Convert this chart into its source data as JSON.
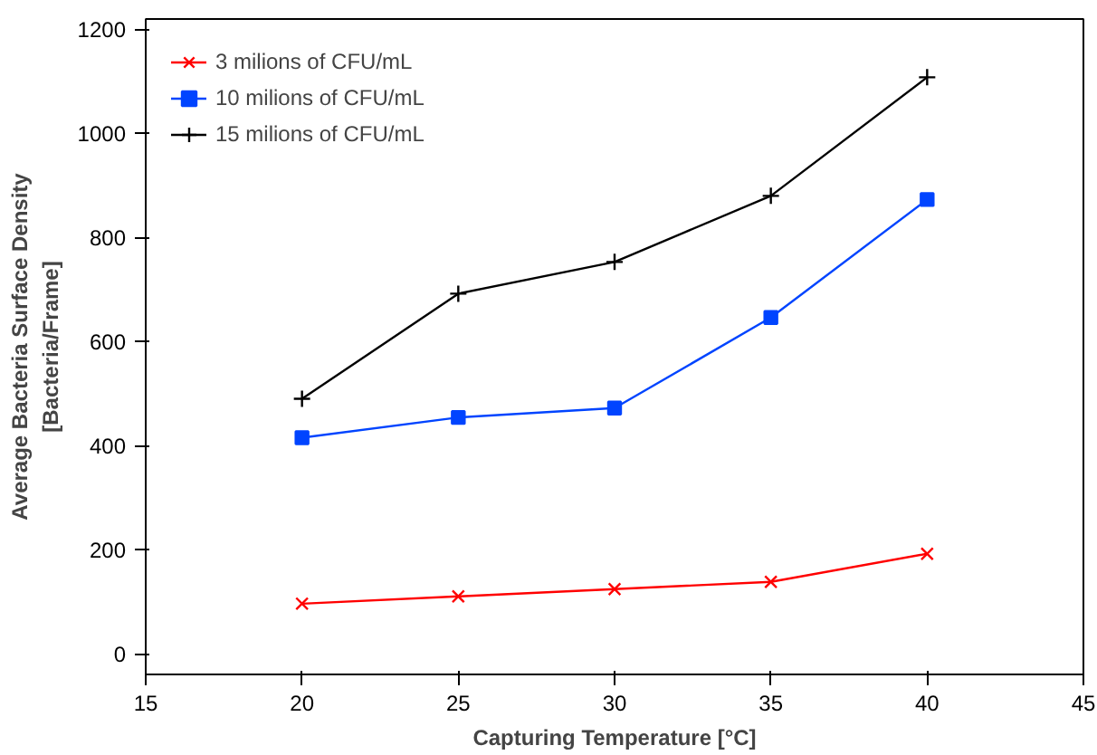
{
  "chart_data": {
    "type": "line",
    "xlabel": "Capturing Temperature [°C]",
    "ylabel": "Average Bacteria Surface Density\n[Bacteria/Frame]",
    "x": [
      20,
      25,
      30,
      35,
      40
    ],
    "series": [
      {
        "name": "3 milions of CFU/mL",
        "color": "#ff0000",
        "marker": "cross",
        "values": [
          96,
          110,
          124,
          138,
          192
        ]
      },
      {
        "name": "10 milions of CFU/mL",
        "color": "#0044ff",
        "marker": "square",
        "values": [
          415,
          454,
          472,
          646,
          873
        ]
      },
      {
        "name": "15 milions of CFU/mL",
        "color": "#000000",
        "marker": "plus",
        "values": [
          490,
          692,
          753,
          880,
          1108
        ]
      }
    ],
    "xlim": [
      15,
      45
    ],
    "xticks": [
      15,
      20,
      25,
      30,
      35,
      40,
      45
    ],
    "ylim": [
      -40,
      1220
    ],
    "yticks": [
      0,
      200,
      400,
      600,
      800,
      1000,
      1200
    ],
    "grid": false,
    "legend": "top left",
    "line_style": "solid"
  }
}
